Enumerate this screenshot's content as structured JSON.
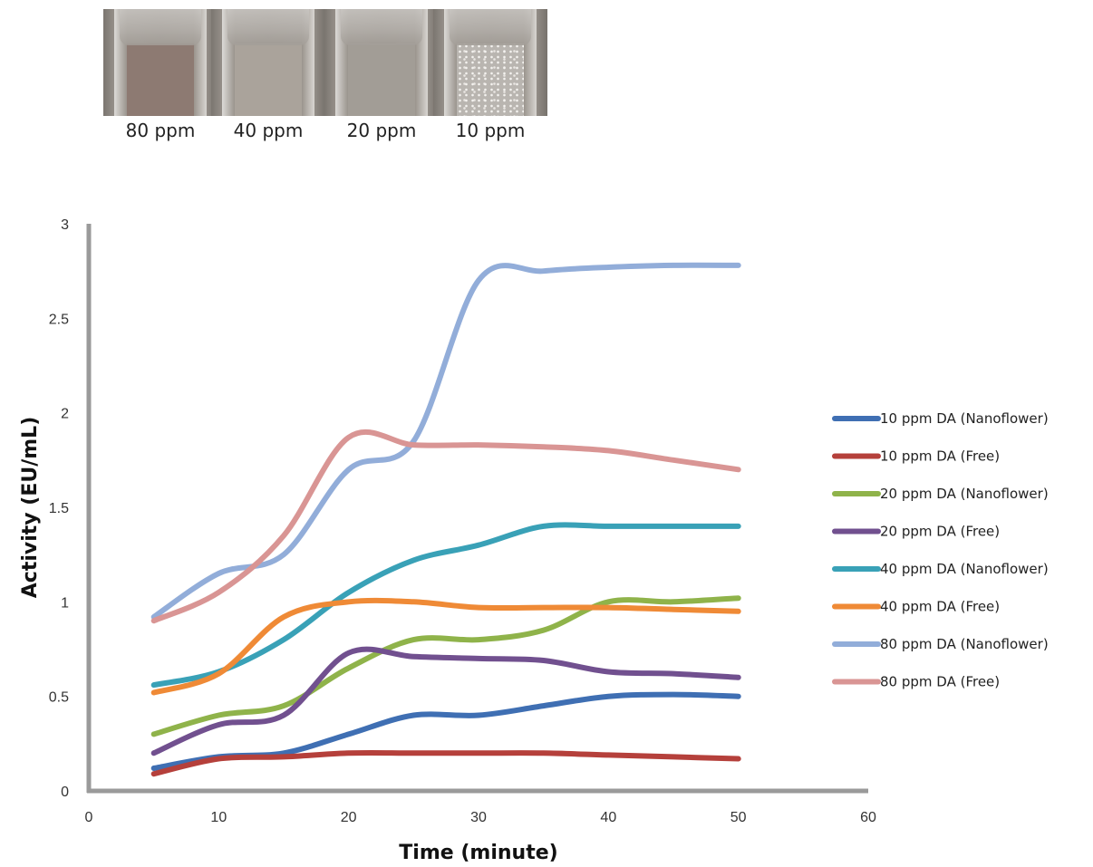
{
  "photos": [
    {
      "label": "80 ppm",
      "liquid": "#8d7a72",
      "sparkle": false
    },
    {
      "label": "40 ppm",
      "liquid": "#aaa39b",
      "sparkle": false
    },
    {
      "label": "20 ppm",
      "liquid": "#a29d96",
      "sparkle": false
    },
    {
      "label": "10 ppm",
      "liquid": "#b9b5b0",
      "sparkle": true
    }
  ],
  "chart_data": {
    "type": "line",
    "title": "",
    "xlabel": "Time (minute)",
    "ylabel": "Activity (EU/mL)",
    "xlim": [
      0,
      60
    ],
    "ylim": [
      0,
      3
    ],
    "xticks": [
      "0",
      "10",
      "20",
      "30",
      "40",
      "50",
      "60"
    ],
    "yticks": [
      "0",
      "0.5",
      "1",
      "1.5",
      "2",
      "2.5",
      "3"
    ],
    "grid": false,
    "legend_position": "right",
    "x": [
      5,
      10,
      15,
      20,
      25,
      30,
      35,
      40,
      45,
      50
    ],
    "series": [
      {
        "name": "10 ppm DA (Nanoflower)",
        "color": "#3f6fb3",
        "values": [
          0.12,
          0.18,
          0.2,
          0.3,
          0.4,
          0.4,
          0.45,
          0.5,
          0.51,
          0.5
        ]
      },
      {
        "name": "10 ppm DA (Free)",
        "color": "#b5403b",
        "values": [
          0.09,
          0.17,
          0.18,
          0.2,
          0.2,
          0.2,
          0.2,
          0.19,
          0.18,
          0.17
        ]
      },
      {
        "name": "20 ppm DA (Nanoflower)",
        "color": "#8fb34a",
        "values": [
          0.3,
          0.4,
          0.45,
          0.65,
          0.8,
          0.8,
          0.85,
          1.0,
          1.0,
          1.02
        ]
      },
      {
        "name": "20 ppm DA (Free)",
        "color": "#71508f",
        "values": [
          0.2,
          0.35,
          0.4,
          0.73,
          0.71,
          0.7,
          0.69,
          0.63,
          0.62,
          0.6
        ]
      },
      {
        "name": "40 ppm DA (Nanoflower)",
        "color": "#39a1b7",
        "values": [
          0.56,
          0.63,
          0.8,
          1.05,
          1.22,
          1.3,
          1.4,
          1.4,
          1.4,
          1.4
        ]
      },
      {
        "name": "40 ppm DA (Free)",
        "color": "#ef8a36",
        "values": [
          0.52,
          0.62,
          0.92,
          1.0,
          1.0,
          0.97,
          0.97,
          0.97,
          0.96,
          0.95
        ]
      },
      {
        "name": "80 ppm DA (Nanoflower)",
        "color": "#92add9",
        "values": [
          0.92,
          1.15,
          1.25,
          1.7,
          1.85,
          2.7,
          2.75,
          2.77,
          2.78,
          2.78
        ]
      },
      {
        "name": "80 ppm DA (Free)",
        "color": "#d99594",
        "values": [
          0.9,
          1.05,
          1.35,
          1.87,
          1.83,
          1.83,
          1.82,
          1.8,
          1.75,
          1.7
        ]
      }
    ]
  }
}
